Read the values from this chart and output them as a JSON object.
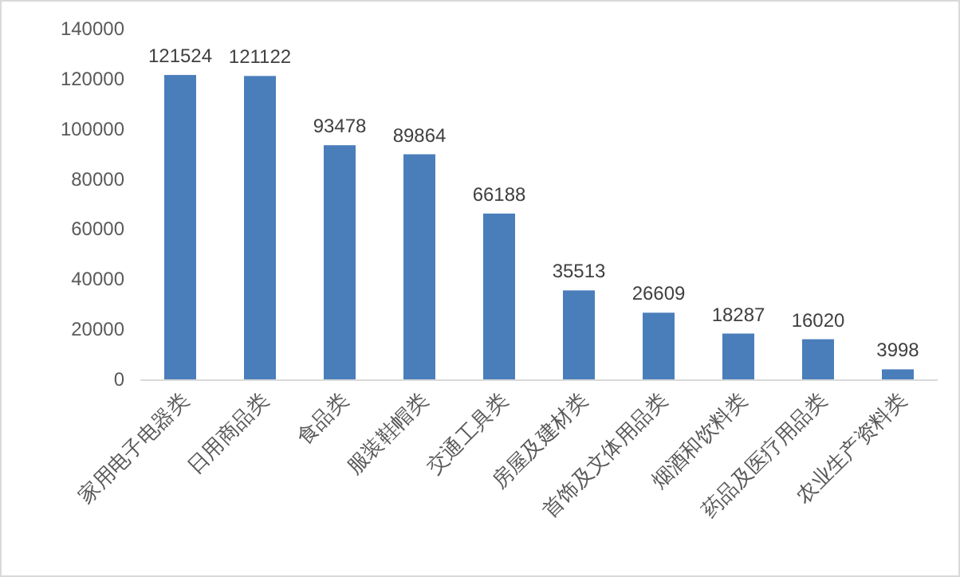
{
  "chart_data": {
    "type": "bar",
    "categories": [
      "家用电子电器类",
      "日用商品类",
      "食品类",
      "服装鞋帽类",
      "交通工具类",
      "房屋及建材类",
      "首饰及文体用品类",
      "烟酒和饮料类",
      "药品及医疗用品类",
      "农业生产资料类"
    ],
    "values": [
      121524,
      121122,
      93478,
      89864,
      66188,
      35513,
      26609,
      18287,
      16020,
      3998
    ],
    "color": "#4a7ebb",
    "ylim": [
      0,
      140000
    ],
    "yticks": [
      0,
      20000,
      40000,
      60000,
      80000,
      100000,
      120000,
      140000
    ],
    "data_labels": true,
    "grid": false
  }
}
